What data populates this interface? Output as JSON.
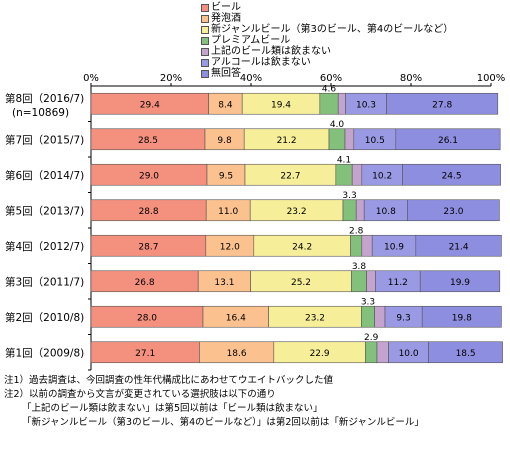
{
  "chart_data": {
    "type": "bar",
    "orientation": "horizontal",
    "stacked": true,
    "percent_axis": true,
    "xlim": [
      0,
      100
    ],
    "x_ticks": [
      "0%",
      "20%",
      "40%",
      "60%",
      "80%",
      "100%"
    ],
    "legend_position": "top",
    "categories": [
      "第8回(2016/7)(n=10869)",
      "第7回(2015/7)",
      "第6回(2014/7)",
      "第5回(2013/7)",
      "第4回(2012/7)",
      "第3回(2011/7)",
      "第2回(2010/8)",
      "第1回(2009/8)"
    ],
    "row_labels": [
      [
        "第8回（2016/7)",
        "(n=10869)"
      ],
      [
        "第7回（2015/7)"
      ],
      [
        "第6回（2014/7)"
      ],
      [
        "第5回（2013/7)"
      ],
      [
        "第4回（2012/7)"
      ],
      [
        "第3回（2011/7)"
      ],
      [
        "第2回（2010/8)"
      ],
      [
        "第1回（2009/8)"
      ]
    ],
    "series": [
      {
        "name": "ビール",
        "color": "#f4907e",
        "values": [
          29.4,
          28.5,
          29.0,
          28.8,
          28.7,
          26.8,
          28.0,
          27.1
        ]
      },
      {
        "name": "発泡酒",
        "color": "#fbc28f",
        "values": [
          8.4,
          9.8,
          9.5,
          11.0,
          12.0,
          13.1,
          16.4,
          18.6
        ]
      },
      {
        "name": "新ジャンルビール（第3のビール、第4のビールなど）",
        "color": "#f7ee9a",
        "values": [
          19.4,
          21.2,
          22.7,
          23.2,
          24.2,
          25.2,
          23.2,
          22.9
        ]
      },
      {
        "name": "プレミアムビール",
        "color": "#82c07b",
        "values": [
          4.6,
          4.0,
          4.1,
          3.3,
          2.8,
          3.8,
          3.3,
          2.9
        ]
      },
      {
        "name": "上記のビール類は飲まない",
        "color": "#c5a3cf",
        "values": [
          1.8,
          2.2,
          2.4,
          2.0,
          2.6,
          2.2,
          2.6,
          2.9
        ]
      },
      {
        "name": "アルコールは飲まない",
        "color": "#9a9ae4",
        "values": [
          10.3,
          10.5,
          10.2,
          10.8,
          10.9,
          11.2,
          9.3,
          10.0
        ]
      },
      {
        "name": "無回答",
        "color": "#8e8ee0",
        "values": [
          27.8,
          26.1,
          24.5,
          23.0,
          21.4,
          19.9,
          19.8,
          18.5
        ]
      }
    ],
    "labeled_series": [
      0,
      1,
      2,
      5,
      6
    ],
    "above_bar_series": 3
  },
  "notes": [
    "注1）過去調査は、今回調査の性年代構成比にあわせてウエイトバックした値",
    "注2）以前の調査から文言が変更されている選択肢は以下の通り",
    "「上記のビール類は飲まない」は第5回以前は「ビール類は飲まない」",
    "「新ジャンルビール（第3のビール、第4のビールなど）」は第2回以前は「新ジャンルビール」"
  ]
}
